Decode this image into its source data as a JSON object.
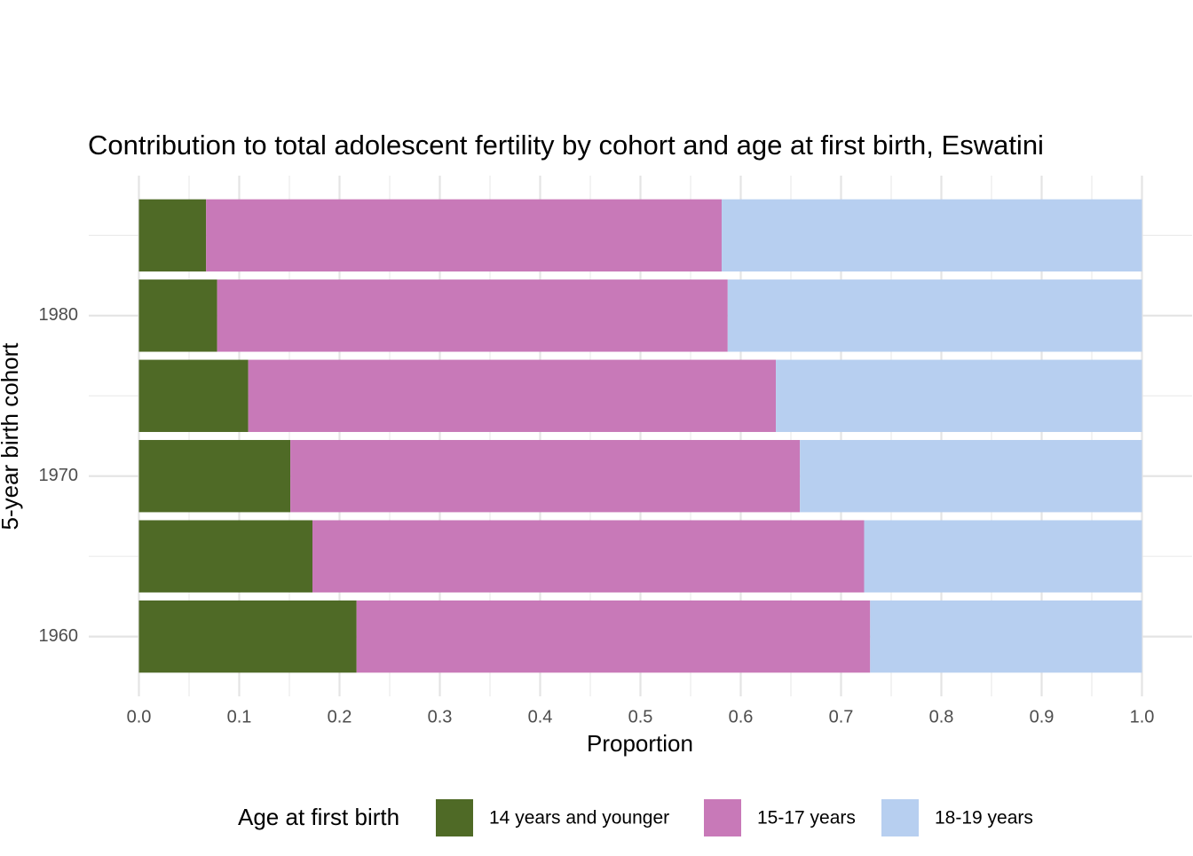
{
  "chart_data": {
    "type": "bar",
    "orientation": "horizontal",
    "stacked": true,
    "title": "Contribution to total adolescent fertility by cohort and age at first birth,  Eswatini",
    "x_label": "Proportion",
    "y_label": "5-year birth cohort",
    "y": [
      1960,
      1965,
      1970,
      1975,
      1980,
      1985
    ],
    "series": [
      {
        "name": "14 years and younger",
        "color": "#4f6a26",
        "values": [
          0.217,
          0.173,
          0.151,
          0.109,
          0.078,
          0.067
        ]
      },
      {
        "name": "15-17 years",
        "color": "#c879b8",
        "values": [
          0.512,
          0.55,
          0.508,
          0.526,
          0.509,
          0.514
        ]
      },
      {
        "name": "18-19 years",
        "color": "#b7cff0",
        "values": [
          0.271,
          0.277,
          0.341,
          0.365,
          0.413,
          0.419
        ]
      }
    ],
    "xlim": [
      -0.05,
      1.05
    ],
    "xticks": [
      {
        "value": 0,
        "label": "0.0"
      },
      0.1,
      0.2,
      0.3,
      0.4,
      0.5,
      0.6,
      0.7,
      0.8,
      0.9,
      {
        "value": 1,
        "label": "1.0"
      }
    ],
    "ylim": [
      1956.275,
      1988.725
    ],
    "yticks": [
      1960,
      1970,
      1980
    ],
    "grid": true,
    "legend_title": "Age at first birth",
    "legend_position": "bottom"
  }
}
